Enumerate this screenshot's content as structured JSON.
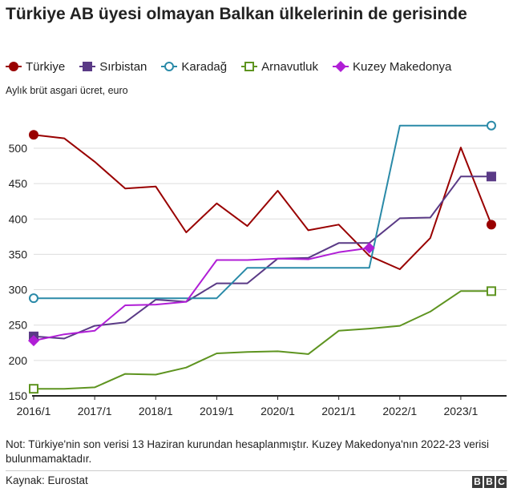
{
  "header": {
    "title": "Türkiye AB üyesi olmayan Balkan ülkelerinin de gerisinde"
  },
  "footer": {
    "note": "Not: Türkiye'nin son verisi 13 Haziran kurundan hesaplanmıştır. Kuzey Makedonya'nın 2022-23 verisi bulunmamaktadır.",
    "source": "Kaynak: Eurostat",
    "logo_letters": [
      "B",
      "B",
      "C"
    ]
  },
  "chart_data": {
    "type": "line",
    "ylabel": "Aylık brüt asgari ücret, euro",
    "xlabel": "",
    "ylim": [
      150,
      560
    ],
    "yticks": [
      150,
      200,
      250,
      300,
      350,
      400,
      450,
      500
    ],
    "xlim": [
      2016.0,
      2023.75
    ],
    "xticks": [
      {
        "label": "2016/1",
        "value": 2016.0
      },
      {
        "label": "2017/1",
        "value": 2017.0
      },
      {
        "label": "2018/1",
        "value": 2018.0
      },
      {
        "label": "2019/1",
        "value": 2019.0
      },
      {
        "label": "2020/1",
        "value": 2020.0
      },
      {
        "label": "2021/1",
        "value": 2021.0
      },
      {
        "label": "2022/1",
        "value": 2022.0
      },
      {
        "label": "2023/1",
        "value": 2023.0
      }
    ],
    "grid": "horizontal",
    "legend_position": "top",
    "series": [
      {
        "name": "Türkiye",
        "color": "#990000",
        "marker": "circle-filled",
        "points": [
          [
            2016.0,
            519
          ],
          [
            2016.5,
            514
          ],
          [
            2017.0,
            481
          ],
          [
            2017.5,
            443
          ],
          [
            2018.0,
            446
          ],
          [
            2018.5,
            381
          ],
          [
            2019.0,
            422
          ],
          [
            2019.5,
            390
          ],
          [
            2020.0,
            440
          ],
          [
            2020.5,
            384
          ],
          [
            2021.0,
            392
          ],
          [
            2021.5,
            348
          ],
          [
            2022.0,
            329
          ],
          [
            2022.5,
            373
          ],
          [
            2023.0,
            501
          ],
          [
            2023.5,
            392
          ]
        ]
      },
      {
        "name": "Sırbistan",
        "color": "#5a3a86",
        "marker": "square-filled",
        "points": [
          [
            2016.0,
            234
          ],
          [
            2016.5,
            231
          ],
          [
            2017.0,
            249
          ],
          [
            2017.5,
            254
          ],
          [
            2018.0,
            286
          ],
          [
            2018.5,
            283
          ],
          [
            2019.0,
            309
          ],
          [
            2019.5,
            309
          ],
          [
            2020.0,
            344
          ],
          [
            2020.5,
            345
          ],
          [
            2021.0,
            366
          ],
          [
            2021.5,
            366
          ],
          [
            2022.0,
            401
          ],
          [
            2022.5,
            402
          ],
          [
            2023.0,
            460
          ],
          [
            2023.5,
            460
          ]
        ]
      },
      {
        "name": "Karadağ",
        "color": "#2a8aa8",
        "marker": "circle-open",
        "points": [
          [
            2016.0,
            288
          ],
          [
            2016.5,
            288
          ],
          [
            2017.0,
            288
          ],
          [
            2017.5,
            288
          ],
          [
            2018.0,
            288
          ],
          [
            2018.5,
            288
          ],
          [
            2019.0,
            288
          ],
          [
            2019.5,
            331
          ],
          [
            2020.0,
            331
          ],
          [
            2020.5,
            331
          ],
          [
            2021.0,
            331
          ],
          [
            2021.5,
            331
          ],
          [
            2022.0,
            532
          ],
          [
            2022.5,
            532
          ],
          [
            2023.0,
            532
          ],
          [
            2023.5,
            532
          ]
        ]
      },
      {
        "name": "Arnavutluk",
        "color": "#5e9420",
        "marker": "square-open",
        "points": [
          [
            2016.0,
            160
          ],
          [
            2016.5,
            160
          ],
          [
            2017.0,
            162
          ],
          [
            2017.5,
            181
          ],
          [
            2018.0,
            180
          ],
          [
            2018.5,
            190
          ],
          [
            2019.0,
            210
          ],
          [
            2019.5,
            212
          ],
          [
            2020.0,
            213
          ],
          [
            2020.5,
            209
          ],
          [
            2021.0,
            242
          ],
          [
            2021.5,
            245
          ],
          [
            2022.0,
            249
          ],
          [
            2022.5,
            269
          ],
          [
            2023.0,
            298
          ],
          [
            2023.5,
            298
          ]
        ]
      },
      {
        "name": "Kuzey Makedonya",
        "color": "#b01ed6",
        "marker": "diamond-filled",
        "points": [
          [
            2016.0,
            228
          ],
          [
            2016.5,
            237
          ],
          [
            2017.0,
            242
          ],
          [
            2017.5,
            278
          ],
          [
            2018.0,
            279
          ],
          [
            2018.5,
            283
          ],
          [
            2019.0,
            342
          ],
          [
            2019.5,
            342
          ],
          [
            2020.0,
            344
          ],
          [
            2020.5,
            343
          ],
          [
            2021.0,
            353
          ],
          [
            2021.5,
            359
          ]
        ]
      }
    ]
  }
}
